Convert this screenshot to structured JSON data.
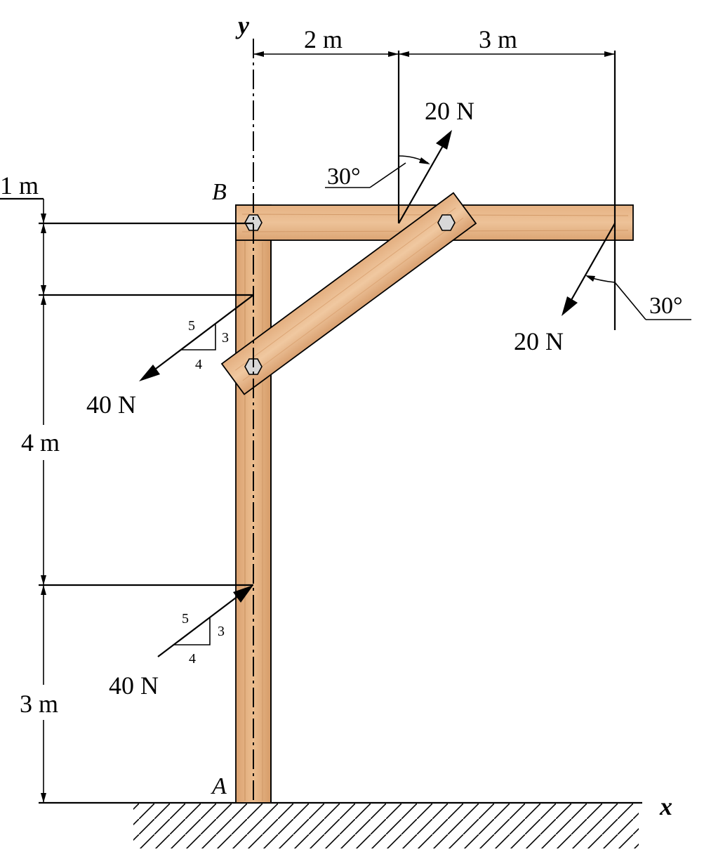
{
  "axes": {
    "x_label": "x",
    "y_label": "y"
  },
  "points": {
    "A": "A",
    "B": "B"
  },
  "dimensions": {
    "top_left": "2 m",
    "top_right": "3 m",
    "left_1": "1 m",
    "left_4": "4 m",
    "left_3": "3 m"
  },
  "forces": {
    "upper_top": "20 N",
    "right_tip": "20 N",
    "left_upper": "40 N",
    "left_lower": "40 N"
  },
  "angles": {
    "upper": "30°",
    "right": "30°"
  },
  "slope_triangles": {
    "upper": {
      "hyp": "5",
      "rise": "3",
      "run": "4"
    },
    "lower": {
      "hyp": "5",
      "rise": "3",
      "run": "4"
    }
  },
  "colors": {
    "wood_light": "#e9b98a",
    "wood_mid": "#dca577",
    "wood_dark": "#c98e5c",
    "bolt": "#d8d8d8",
    "line": "#000000"
  }
}
